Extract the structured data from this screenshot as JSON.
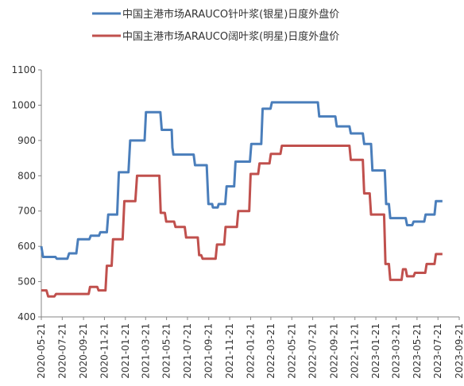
{
  "chart_data": {
    "type": "line",
    "title": "",
    "xlabel": "",
    "ylabel": "",
    "ylim": [
      400,
      1100
    ],
    "y_ticks": [
      400,
      500,
      600,
      700,
      800,
      900,
      1000,
      1100
    ],
    "x_range": [
      "2020-05-21",
      "2023-09-21"
    ],
    "x_tick_labels": [
      "2020-05-21",
      "2020-07-21",
      "2020-09-21",
      "2020-11-21",
      "2021-01-21",
      "2021-03-21",
      "2021-05-21",
      "2021-07-21",
      "2021-09-21",
      "2021-11-21",
      "2022-01-21",
      "2022-03-21",
      "2022-05-21",
      "2022-07-21",
      "2022-09-21",
      "2022-11-21",
      "2023-01-21",
      "2023-03-21",
      "2023-05-21",
      "2023-07-21",
      "2023-09-21"
    ],
    "grid": false,
    "legend_position": "top",
    "series": [
      {
        "name": "中国主港市场ARAUCO针叶浆(银星)日度外盘价",
        "color": "#4A7EBB",
        "points": [
          [
            "2020-05-21",
            600
          ],
          [
            "2020-05-26",
            570
          ],
          [
            "2020-07-01",
            570
          ],
          [
            "2020-07-05",
            565
          ],
          [
            "2020-08-05",
            565
          ],
          [
            "2020-08-10",
            580
          ],
          [
            "2020-08-31",
            580
          ],
          [
            "2020-09-05",
            620
          ],
          [
            "2020-10-08",
            620
          ],
          [
            "2020-10-12",
            630
          ],
          [
            "2020-11-05",
            630
          ],
          [
            "2020-11-09",
            640
          ],
          [
            "2020-11-28",
            640
          ],
          [
            "2020-12-02",
            690
          ],
          [
            "2020-12-28",
            690
          ],
          [
            "2021-01-02",
            810
          ],
          [
            "2021-01-30",
            810
          ],
          [
            "2021-02-04",
            900
          ],
          [
            "2021-03-18",
            900
          ],
          [
            "2021-03-22",
            980
          ],
          [
            "2021-05-03",
            980
          ],
          [
            "2021-05-07",
            930
          ],
          [
            "2021-06-05",
            930
          ],
          [
            "2021-06-07",
            880
          ],
          [
            "2021-06-10",
            860
          ],
          [
            "2021-08-08",
            860
          ],
          [
            "2021-08-12",
            830
          ],
          [
            "2021-09-15",
            830
          ],
          [
            "2021-09-20",
            720
          ],
          [
            "2021-10-01",
            720
          ],
          [
            "2021-10-03",
            710
          ],
          [
            "2021-10-17",
            710
          ],
          [
            "2021-10-20",
            720
          ],
          [
            "2021-11-08",
            720
          ],
          [
            "2021-11-12",
            770
          ],
          [
            "2021-12-04",
            770
          ],
          [
            "2021-12-08",
            840
          ],
          [
            "2022-01-19",
            840
          ],
          [
            "2022-01-23",
            890
          ],
          [
            "2022-02-21",
            890
          ],
          [
            "2022-02-25",
            990
          ],
          [
            "2022-03-20",
            990
          ],
          [
            "2022-03-24",
            1008
          ],
          [
            "2022-08-05",
            1008
          ],
          [
            "2022-08-09",
            968
          ],
          [
            "2022-09-25",
            968
          ],
          [
            "2022-09-29",
            940
          ],
          [
            "2022-11-05",
            940
          ],
          [
            "2022-11-09",
            920
          ],
          [
            "2022-12-14",
            920
          ],
          [
            "2022-12-18",
            890
          ],
          [
            "2023-01-07",
            890
          ],
          [
            "2023-01-11",
            815
          ],
          [
            "2023-02-16",
            815
          ],
          [
            "2023-02-20",
            720
          ],
          [
            "2023-02-28",
            720
          ],
          [
            "2023-03-04",
            680
          ],
          [
            "2023-04-18",
            680
          ],
          [
            "2023-04-22",
            660
          ],
          [
            "2023-05-07",
            660
          ],
          [
            "2023-05-11",
            670
          ],
          [
            "2023-06-11",
            670
          ],
          [
            "2023-06-15",
            690
          ],
          [
            "2023-07-11",
            690
          ],
          [
            "2023-07-15",
            728
          ],
          [
            "2023-08-03",
            728
          ]
        ]
      },
      {
        "name": "中国主港市场ARAUCO阔叶浆(明星)日度外盘价",
        "color": "#C0504D",
        "points": [
          [
            "2020-05-21",
            475
          ],
          [
            "2020-06-05",
            475
          ],
          [
            "2020-06-10",
            458
          ],
          [
            "2020-06-28",
            458
          ],
          [
            "2020-07-03",
            465
          ],
          [
            "2020-10-06",
            465
          ],
          [
            "2020-10-10",
            485
          ],
          [
            "2020-10-31",
            485
          ],
          [
            "2020-11-04",
            475
          ],
          [
            "2020-11-24",
            475
          ],
          [
            "2020-11-28",
            545
          ],
          [
            "2020-12-12",
            545
          ],
          [
            "2020-12-16",
            620
          ],
          [
            "2021-01-13",
            620
          ],
          [
            "2021-01-18",
            728
          ],
          [
            "2021-02-19",
            728
          ],
          [
            "2021-02-24",
            800
          ],
          [
            "2021-04-30",
            800
          ],
          [
            "2021-05-04",
            695
          ],
          [
            "2021-05-16",
            695
          ],
          [
            "2021-05-20",
            670
          ],
          [
            "2021-06-12",
            670
          ],
          [
            "2021-06-16",
            655
          ],
          [
            "2021-07-13",
            655
          ],
          [
            "2021-07-17",
            625
          ],
          [
            "2021-08-20",
            625
          ],
          [
            "2021-08-24",
            575
          ],
          [
            "2021-08-30",
            575
          ],
          [
            "2021-09-03",
            565
          ],
          [
            "2021-10-11",
            565
          ],
          [
            "2021-10-15",
            605
          ],
          [
            "2021-11-05",
            605
          ],
          [
            "2021-11-09",
            655
          ],
          [
            "2021-12-12",
            655
          ],
          [
            "2021-12-16",
            700
          ],
          [
            "2022-01-17",
            700
          ],
          [
            "2022-01-21",
            805
          ],
          [
            "2022-02-12",
            805
          ],
          [
            "2022-02-16",
            835
          ],
          [
            "2022-03-17",
            835
          ],
          [
            "2022-03-21",
            862
          ],
          [
            "2022-04-18",
            862
          ],
          [
            "2022-04-22",
            885
          ],
          [
            "2022-11-05",
            885
          ],
          [
            "2022-11-09",
            845
          ],
          [
            "2022-12-14",
            845
          ],
          [
            "2022-12-18",
            750
          ],
          [
            "2023-01-03",
            750
          ],
          [
            "2023-01-07",
            690
          ],
          [
            "2023-02-14",
            690
          ],
          [
            "2023-02-18",
            550
          ],
          [
            "2023-02-28",
            550
          ],
          [
            "2023-03-04",
            505
          ],
          [
            "2023-04-06",
            505
          ],
          [
            "2023-04-10",
            535
          ],
          [
            "2023-04-18",
            535
          ],
          [
            "2023-04-22",
            515
          ],
          [
            "2023-05-11",
            515
          ],
          [
            "2023-05-15",
            525
          ],
          [
            "2023-06-14",
            525
          ],
          [
            "2023-06-18",
            550
          ],
          [
            "2023-07-11",
            550
          ],
          [
            "2023-07-15",
            578
          ],
          [
            "2023-08-03",
            578
          ]
        ]
      }
    ]
  }
}
